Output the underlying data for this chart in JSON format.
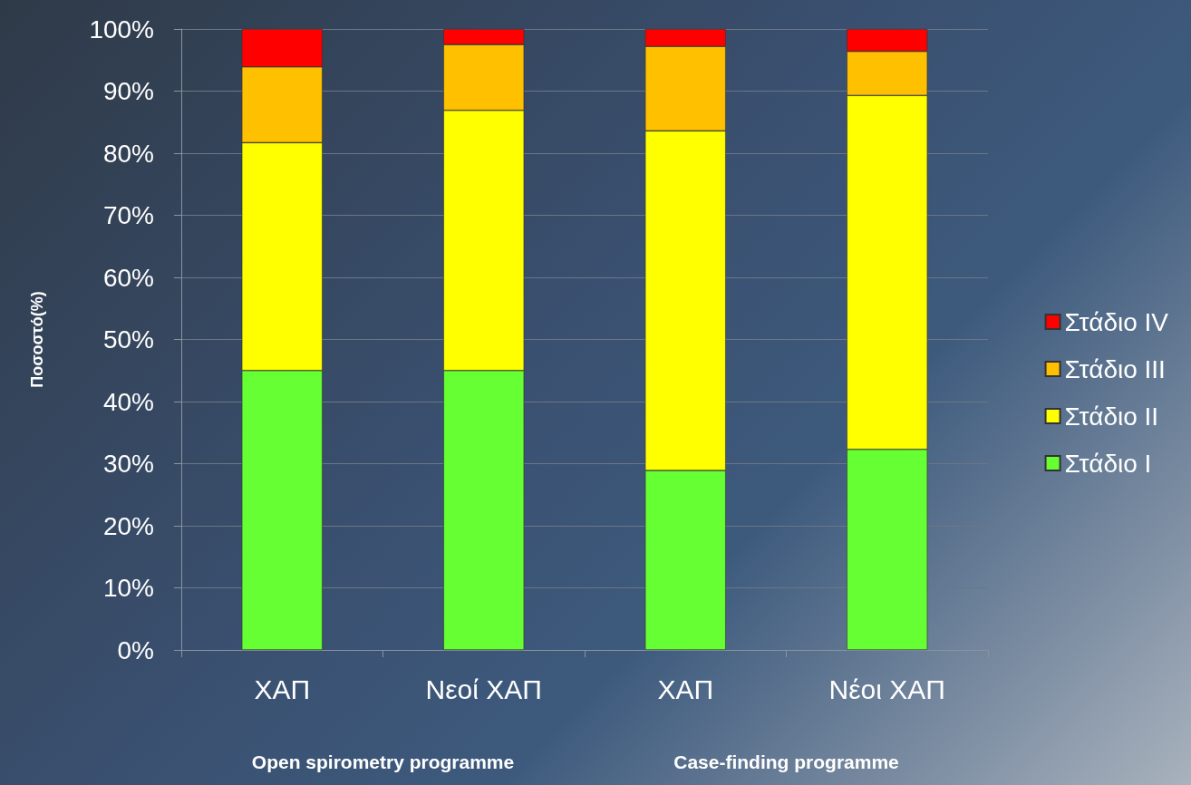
{
  "chart_data": {
    "type": "bar",
    "stacked": true,
    "ylabel": "Ποσοστό(%)",
    "categories": [
      "ΧΑΠ",
      "Νεοί ΧΑΠ",
      "ΧΑΠ",
      "Νέοι ΧΑΠ"
    ],
    "series": [
      {
        "name": "Στάδιο I",
        "color": "#66ff33",
        "values": [
          45.0,
          45.0,
          28.9,
          32.3
        ]
      },
      {
        "name": "Στάδιο II",
        "color": "#ffff00",
        "values": [
          36.7,
          41.9,
          54.7,
          57.0
        ]
      },
      {
        "name": "Στάδιο III",
        "color": "#ffc000",
        "values": [
          12.2,
          10.6,
          13.6,
          7.1
        ]
      },
      {
        "name": "Στάδιο IV",
        "color": "#ff0000",
        "values": [
          6.1,
          2.5,
          2.8,
          3.6
        ]
      }
    ],
    "ylim": [
      0,
      100
    ],
    "yticks": [
      {
        "value": 0,
        "label": "0%"
      },
      {
        "value": 10,
        "label": "10%"
      },
      {
        "value": 20,
        "label": "20%"
      },
      {
        "value": 30,
        "label": "30%"
      },
      {
        "value": 40,
        "label": "40%"
      },
      {
        "value": 50,
        "label": "50%"
      },
      {
        "value": 60,
        "label": "60%"
      },
      {
        "value": 70,
        "label": "70%"
      },
      {
        "value": 80,
        "label": "80%"
      },
      {
        "value": 90,
        "label": "90%"
      },
      {
        "value": 100,
        "label": "100%"
      }
    ],
    "grid": "y",
    "legend": "right",
    "annotations": [
      "Open spirometry programme",
      "Case-finding programme"
    ]
  }
}
